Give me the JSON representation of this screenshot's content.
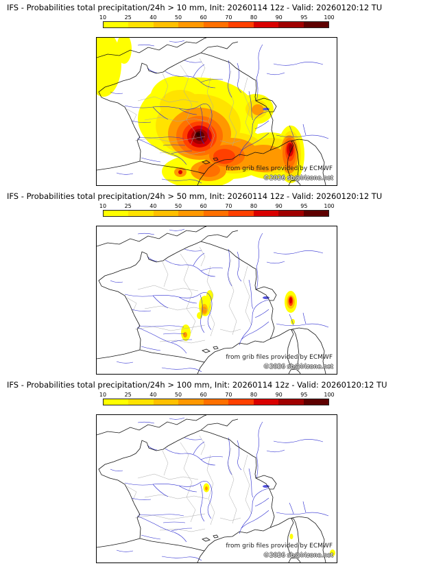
{
  "colorbar": {
    "labels": [
      "10",
      "25",
      "40",
      "50",
      "60",
      "70",
      "80",
      "90",
      "95",
      "100"
    ],
    "colors": [
      "#ffff00",
      "#ffe300",
      "#ffc000",
      "#ff9800",
      "#ff7000",
      "#ff4000",
      "#d90000",
      "#a00000",
      "#5e0000"
    ]
  },
  "panels": [
    {
      "threshold": "10 mm",
      "title": "IFS - Probabilities total precipitation/24h > 10 mm, Init: 20260114 12z - Valid: 20260120:12 TU",
      "watermark": {
        "line1": "from grib files provided by ECMWF",
        "line2": "©2026 sb@irizone.net"
      }
    },
    {
      "threshold": "50 mm",
      "title": "IFS - Probabilities total precipitation/24h > 50 mm, Init: 20260114 12z - Valid: 20260120:12 TU",
      "watermark": {
        "line1": "from grib files provided by ECMWF",
        "line2": "©2026 sb@irizone.net"
      }
    },
    {
      "threshold": "100 mm",
      "title": "IFS - Probabilities total precipitation/24h > 100 mm, Init: 20260114 12z - Valid: 20260120:12 TU",
      "watermark": {
        "line1": "from grib files provided by ECMWF",
        "line2": "©2026 sb@irizone.net"
      }
    }
  ],
  "map": {
    "region": "France",
    "river_color": "#2a2ad0",
    "border_color": "#111111",
    "department_color": "#aaaaaa"
  }
}
